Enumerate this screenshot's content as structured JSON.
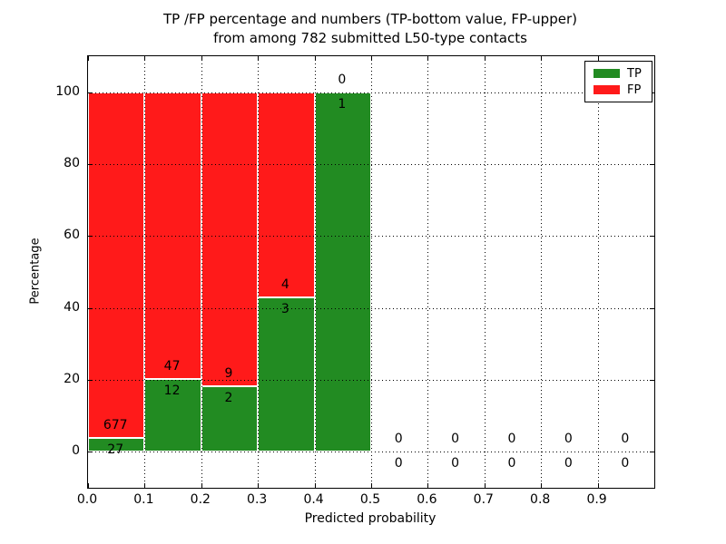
{
  "figure": {
    "title_line1": "TP /FP percentage and numbers (TP-bottom value, FP-upper)",
    "title_line2": "from among 782 submitted L50-type contacts",
    "xlabel": "Predicted probability",
    "ylabel": "Percentage"
  },
  "legend": {
    "items": [
      {
        "label": "TP",
        "color": "#228b22"
      },
      {
        "label": "FP",
        "color": "#ff1a1a"
      }
    ]
  },
  "chart_data": {
    "type": "bar",
    "stacked": true,
    "normalized_to_percent": true,
    "title": "TP /FP percentage and numbers (TP-bottom value, FP-upper) from among 782 submitted L50-type contacts",
    "xlabel": "Predicted probability",
    "ylabel": "Percentage",
    "total_contacts": 782,
    "categories": [
      "0.0-0.1",
      "0.1-0.2",
      "0.2-0.3",
      "0.3-0.4",
      "0.4-0.5",
      "0.5-0.6",
      "0.6-0.7",
      "0.7-0.8",
      "0.8-0.9",
      "0.9-1.0"
    ],
    "bin_width": 0.1,
    "series": [
      {
        "name": "TP",
        "color": "#228b22",
        "counts": [
          27,
          12,
          2,
          3,
          1,
          0,
          0,
          0,
          0,
          0
        ],
        "pct": [
          3.84,
          20.34,
          18.18,
          42.86,
          100,
          0,
          0,
          0,
          0,
          0
        ]
      },
      {
        "name": "FP",
        "color": "#ff1a1a",
        "counts": [
          677,
          47,
          9,
          4,
          0,
          0,
          0,
          0,
          0,
          0
        ],
        "pct": [
          96.16,
          79.66,
          81.82,
          57.14,
          0,
          0,
          0,
          0,
          0,
          0
        ]
      }
    ],
    "xticks": [
      "0.0",
      "0.1",
      "0.2",
      "0.3",
      "0.4",
      "0.5",
      "0.6",
      "0.7",
      "0.8",
      "0.9"
    ],
    "yticks": [
      0,
      20,
      40,
      60,
      80,
      100
    ],
    "xlim": [
      0.0,
      1.0
    ],
    "ylim": [
      -10,
      110
    ],
    "grid": true,
    "grid_style": "dotted",
    "legend_position": "upper right"
  }
}
